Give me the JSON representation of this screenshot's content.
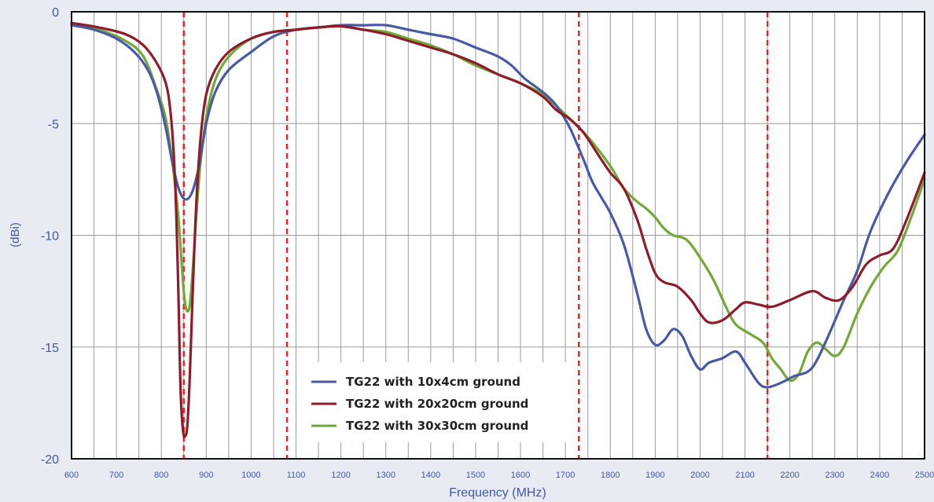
{
  "chart_data": {
    "type": "line",
    "xlabel": "Frequency (MHz)",
    "ylabel": "(dBi)",
    "xlim": [
      600,
      2500
    ],
    "ylim": [
      -20,
      0
    ],
    "x_ticks": [
      600,
      700,
      800,
      900,
      1000,
      1100,
      1200,
      1300,
      1400,
      1500,
      1600,
      1700,
      1800,
      1900,
      2000,
      2100,
      2200,
      2300,
      2400,
      2500
    ],
    "y_ticks": [
      0,
      -5,
      -10,
      -15,
      -20
    ],
    "grid": true,
    "legend_position": "bottom-center",
    "reference_lines": [
      {
        "x": 850,
        "color": "#e8262a",
        "style": "dashed"
      },
      {
        "x": 1080,
        "color": "#e8262a",
        "style": "dashed"
      },
      {
        "x": 1730,
        "color": "#e8262a",
        "style": "dashed"
      },
      {
        "x": 2150,
        "color": "#e8262a",
        "style": "dashed"
      }
    ],
    "series": [
      {
        "name": "TG22 with 10x4cm ground",
        "color": "#4a5aa2",
        "points": [
          [
            600,
            -0.6
          ],
          [
            650,
            -0.8
          ],
          [
            700,
            -1.2
          ],
          [
            740,
            -1.8
          ],
          [
            770,
            -2.6
          ],
          [
            790,
            -3.6
          ],
          [
            810,
            -5.2
          ],
          [
            825,
            -6.8
          ],
          [
            840,
            -8.0
          ],
          [
            855,
            -8.4
          ],
          [
            870,
            -8.0
          ],
          [
            885,
            -6.8
          ],
          [
            900,
            -5.0
          ],
          [
            920,
            -3.6
          ],
          [
            950,
            -2.6
          ],
          [
            1000,
            -1.8
          ],
          [
            1050,
            -1.1
          ],
          [
            1100,
            -0.8
          ],
          [
            1150,
            -0.7
          ],
          [
            1200,
            -0.6
          ],
          [
            1250,
            -0.6
          ],
          [
            1300,
            -0.6
          ],
          [
            1350,
            -0.8
          ],
          [
            1400,
            -1.0
          ],
          [
            1450,
            -1.2
          ],
          [
            1500,
            -1.6
          ],
          [
            1550,
            -2.0
          ],
          [
            1580,
            -2.4
          ],
          [
            1610,
            -3.0
          ],
          [
            1650,
            -3.6
          ],
          [
            1680,
            -4.2
          ],
          [
            1710,
            -5.2
          ],
          [
            1740,
            -6.6
          ],
          [
            1760,
            -7.6
          ],
          [
            1780,
            -8.3
          ],
          [
            1800,
            -9.0
          ],
          [
            1830,
            -10.4
          ],
          [
            1860,
            -12.6
          ],
          [
            1880,
            -14.2
          ],
          [
            1900,
            -14.9
          ],
          [
            1920,
            -14.7
          ],
          [
            1940,
            -14.2
          ],
          [
            1960,
            -14.5
          ],
          [
            1980,
            -15.4
          ],
          [
            2000,
            -16.0
          ],
          [
            2020,
            -15.7
          ],
          [
            2050,
            -15.5
          ],
          [
            2080,
            -15.2
          ],
          [
            2100,
            -15.7
          ],
          [
            2130,
            -16.6
          ],
          [
            2150,
            -16.8
          ],
          [
            2180,
            -16.6
          ],
          [
            2210,
            -16.3
          ],
          [
            2240,
            -16.1
          ],
          [
            2260,
            -15.6
          ],
          [
            2290,
            -14.3
          ],
          [
            2320,
            -12.9
          ],
          [
            2350,
            -11.6
          ],
          [
            2380,
            -9.8
          ],
          [
            2420,
            -8.1
          ],
          [
            2460,
            -6.7
          ],
          [
            2500,
            -5.5
          ]
        ]
      },
      {
        "name": "TG22 with 20x20cm ground",
        "color": "#8b1e2a",
        "points": [
          [
            600,
            -0.5
          ],
          [
            660,
            -0.7
          ],
          [
            720,
            -1.0
          ],
          [
            760,
            -1.5
          ],
          [
            790,
            -2.3
          ],
          [
            810,
            -3.2
          ],
          [
            820,
            -4.4
          ],
          [
            828,
            -6.5
          ],
          [
            834,
            -9.5
          ],
          [
            839,
            -13.5
          ],
          [
            843,
            -17.0
          ],
          [
            848,
            -18.7
          ],
          [
            853,
            -19.0
          ],
          [
            858,
            -18.5
          ],
          [
            863,
            -16.5
          ],
          [
            870,
            -12.5
          ],
          [
            878,
            -8.5
          ],
          [
            888,
            -5.5
          ],
          [
            900,
            -3.7
          ],
          [
            920,
            -2.6
          ],
          [
            950,
            -1.8
          ],
          [
            1000,
            -1.2
          ],
          [
            1050,
            -0.9
          ],
          [
            1100,
            -0.8
          ],
          [
            1150,
            -0.7
          ],
          [
            1200,
            -0.65
          ],
          [
            1250,
            -0.8
          ],
          [
            1300,
            -1.0
          ],
          [
            1350,
            -1.3
          ],
          [
            1400,
            -1.6
          ],
          [
            1450,
            -1.9
          ],
          [
            1500,
            -2.3
          ],
          [
            1550,
            -2.8
          ],
          [
            1600,
            -3.2
          ],
          [
            1650,
            -3.8
          ],
          [
            1680,
            -4.4
          ],
          [
            1710,
            -4.8
          ],
          [
            1740,
            -5.4
          ],
          [
            1770,
            -6.3
          ],
          [
            1800,
            -7.2
          ],
          [
            1830,
            -7.9
          ],
          [
            1860,
            -9.3
          ],
          [
            1880,
            -10.6
          ],
          [
            1900,
            -11.7
          ],
          [
            1920,
            -12.1
          ],
          [
            1950,
            -12.3
          ],
          [
            1980,
            -12.9
          ],
          [
            2000,
            -13.5
          ],
          [
            2020,
            -13.9
          ],
          [
            2050,
            -13.8
          ],
          [
            2080,
            -13.3
          ],
          [
            2100,
            -13.0
          ],
          [
            2130,
            -13.1
          ],
          [
            2160,
            -13.2
          ],
          [
            2200,
            -12.9
          ],
          [
            2250,
            -12.5
          ],
          [
            2280,
            -12.8
          ],
          [
            2310,
            -12.9
          ],
          [
            2340,
            -12.3
          ],
          [
            2370,
            -11.3
          ],
          [
            2400,
            -10.9
          ],
          [
            2430,
            -10.6
          ],
          [
            2460,
            -9.3
          ],
          [
            2500,
            -7.2
          ]
        ]
      },
      {
        "name": "TG22 with 30x30cm ground",
        "color": "#72a83b",
        "points": [
          [
            600,
            -0.6
          ],
          [
            660,
            -0.8
          ],
          [
            720,
            -1.3
          ],
          [
            760,
            -2.0
          ],
          [
            790,
            -3.5
          ],
          [
            810,
            -4.8
          ],
          [
            825,
            -6.8
          ],
          [
            838,
            -9.2
          ],
          [
            846,
            -11.5
          ],
          [
            852,
            -12.9
          ],
          [
            858,
            -13.4
          ],
          [
            864,
            -13.0
          ],
          [
            872,
            -11.0
          ],
          [
            880,
            -8.5
          ],
          [
            890,
            -6.2
          ],
          [
            905,
            -4.2
          ],
          [
            925,
            -2.8
          ],
          [
            955,
            -1.9
          ],
          [
            1000,
            -1.2
          ],
          [
            1050,
            -0.9
          ],
          [
            1100,
            -0.8
          ],
          [
            1150,
            -0.7
          ],
          [
            1200,
            -0.65
          ],
          [
            1250,
            -0.8
          ],
          [
            1300,
            -0.9
          ],
          [
            1350,
            -1.2
          ],
          [
            1400,
            -1.5
          ],
          [
            1450,
            -1.9
          ],
          [
            1500,
            -2.4
          ],
          [
            1550,
            -2.8
          ],
          [
            1600,
            -3.2
          ],
          [
            1650,
            -3.7
          ],
          [
            1700,
            -4.6
          ],
          [
            1750,
            -5.6
          ],
          [
            1800,
            -6.9
          ],
          [
            1830,
            -7.9
          ],
          [
            1860,
            -8.5
          ],
          [
            1880,
            -8.8
          ],
          [
            1900,
            -9.2
          ],
          [
            1920,
            -9.7
          ],
          [
            1940,
            -10.0
          ],
          [
            1970,
            -10.2
          ],
          [
            2000,
            -11.0
          ],
          [
            2030,
            -12.0
          ],
          [
            2060,
            -13.3
          ],
          [
            2080,
            -14.0
          ],
          [
            2110,
            -14.4
          ],
          [
            2140,
            -14.8
          ],
          [
            2160,
            -15.5
          ],
          [
            2180,
            -16.0
          ],
          [
            2200,
            -16.5
          ],
          [
            2220,
            -16.2
          ],
          [
            2240,
            -15.2
          ],
          [
            2260,
            -14.8
          ],
          [
            2280,
            -15.1
          ],
          [
            2300,
            -15.4
          ],
          [
            2320,
            -15.0
          ],
          [
            2350,
            -13.5
          ],
          [
            2380,
            -12.3
          ],
          [
            2410,
            -11.4
          ],
          [
            2440,
            -10.7
          ],
          [
            2470,
            -9.2
          ],
          [
            2500,
            -7.5
          ]
        ]
      }
    ]
  }
}
